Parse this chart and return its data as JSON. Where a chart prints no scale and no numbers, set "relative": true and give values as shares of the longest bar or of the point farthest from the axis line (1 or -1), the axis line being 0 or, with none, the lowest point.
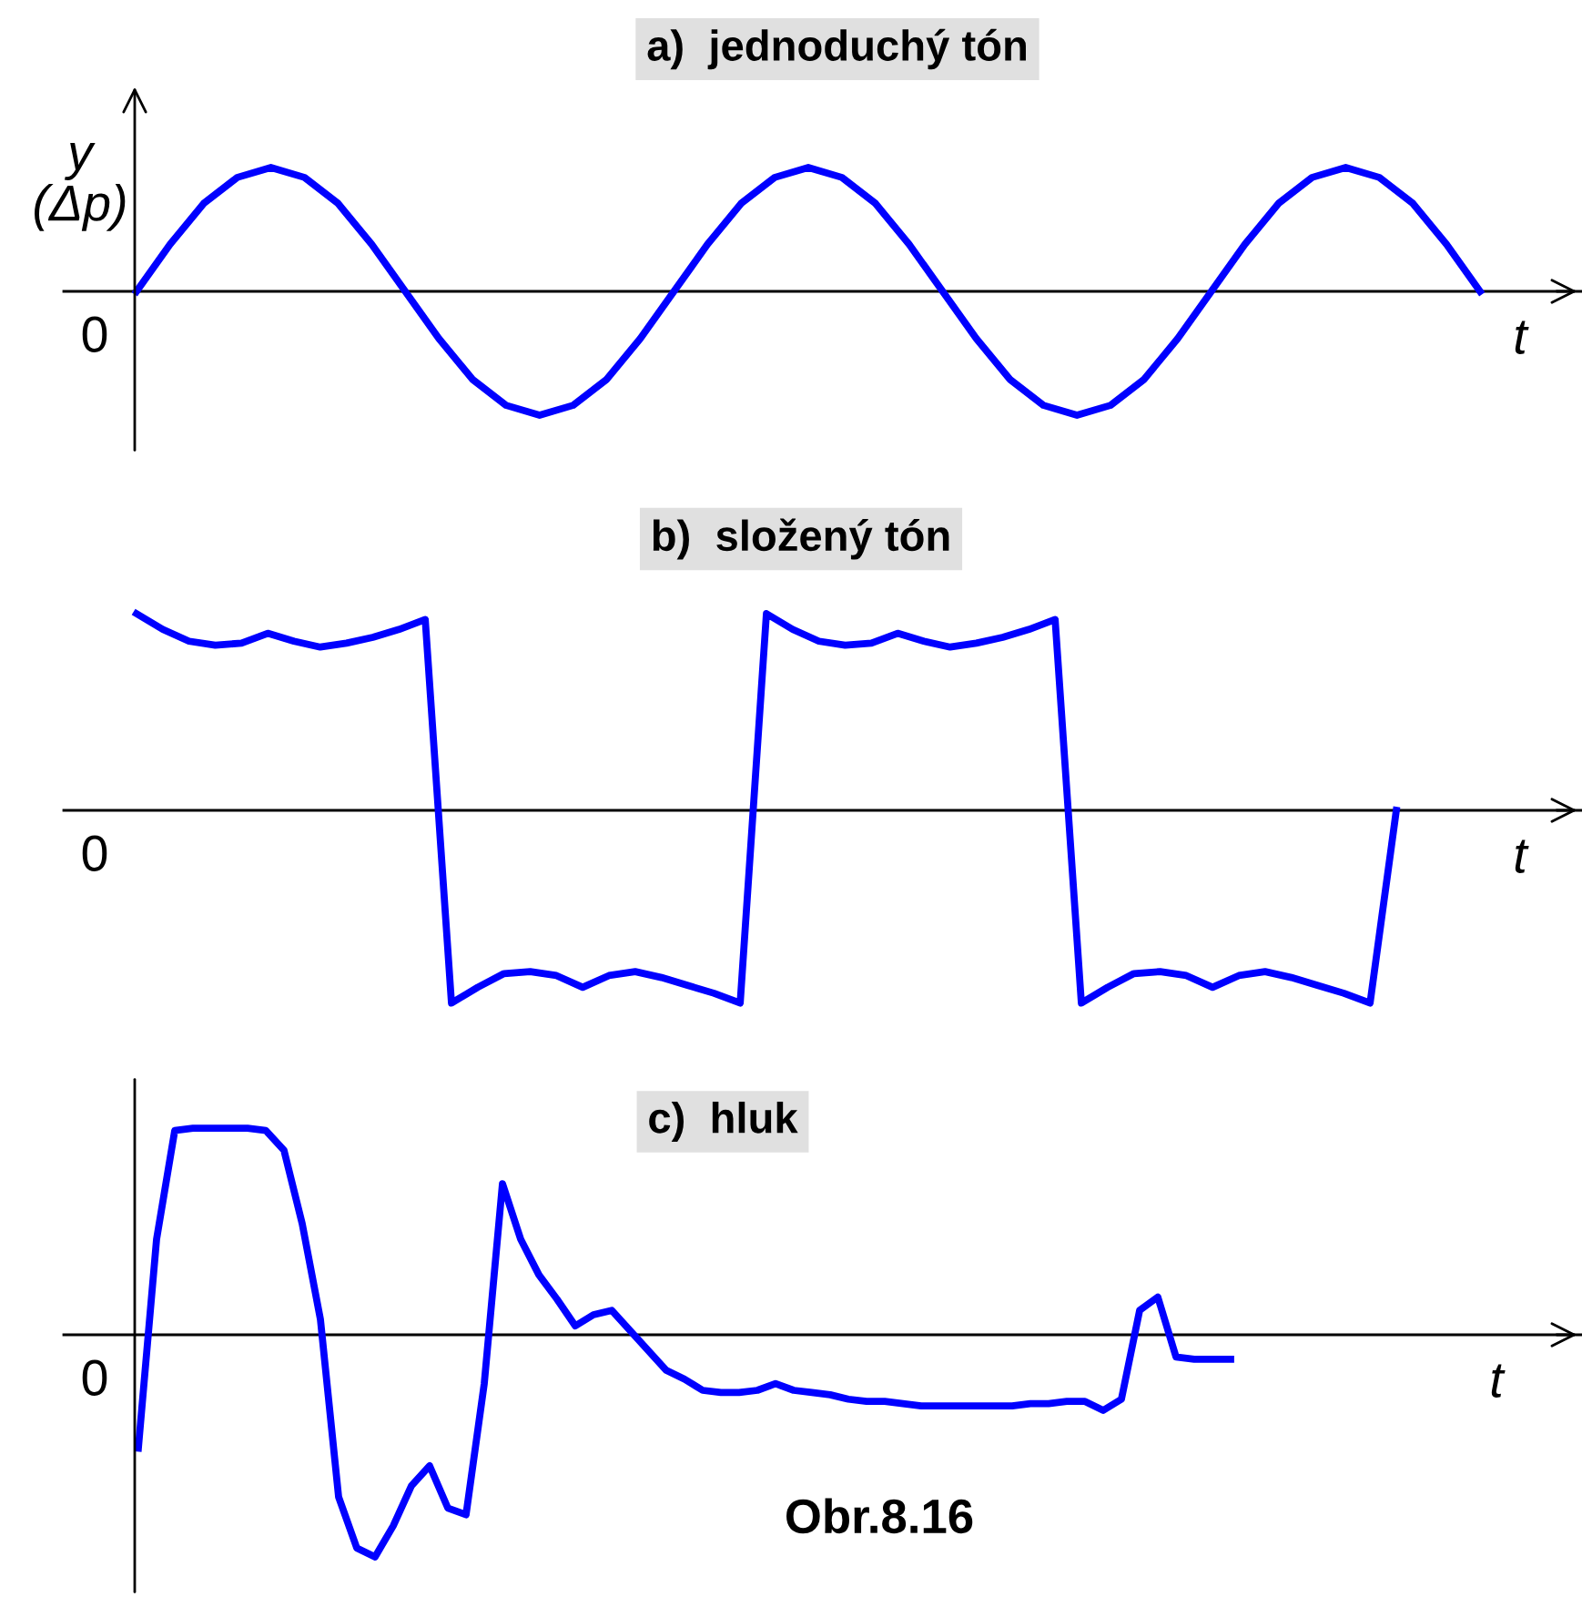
{
  "chart_data": [
    {
      "type": "line",
      "relative": true,
      "title": "a)  jednoduchý tón",
      "ylabel": "y (Δp)",
      "xlabel": "t",
      "annotations": [
        "0"
      ],
      "categories": [
        null,
        null,
        null,
        null,
        null,
        null,
        null,
        null,
        null,
        null,
        null,
        null,
        null,
        null,
        null,
        null,
        null,
        null,
        null,
        null,
        null,
        null,
        null,
        null,
        null,
        null,
        null,
        null,
        null,
        null,
        null,
        null,
        null,
        null,
        null,
        null,
        null,
        null,
        null,
        null,
        null
      ],
      "series": [
        {
          "color": "#0000ff",
          "values": [
            0,
            0.38,
            0.71,
            0.92,
            1,
            0.92,
            0.71,
            0.38,
            0,
            -0.38,
            -0.71,
            -0.92,
            -1,
            -0.92,
            -0.71,
            -0.38,
            0,
            0.38,
            0.71,
            0.92,
            1,
            0.92,
            0.71,
            0.38,
            0,
            -0.38,
            -0.71,
            -0.92,
            -1,
            -0.92,
            -0.71,
            -0.38,
            0,
            0.38,
            0.71,
            0.92,
            1,
            0.92,
            0.71,
            0.38,
            0
          ]
        }
      ]
    },
    {
      "type": "line",
      "relative": true,
      "title": "b)  složený tón",
      "xlabel": "t",
      "annotations": [
        "0"
      ],
      "categories": [
        null,
        null,
        null,
        null,
        null,
        null,
        null,
        null,
        null,
        null,
        null,
        null,
        null,
        null,
        null,
        null,
        null,
        null,
        null,
        null,
        null,
        null,
        null,
        null,
        null,
        null,
        null,
        null,
        null,
        null,
        null,
        null,
        null,
        null,
        null,
        null,
        null,
        null,
        null,
        null,
        null,
        null,
        null,
        null,
        null,
        null,
        null,
        null,
        null
      ],
      "series": [
        {
          "color": "#0000ff",
          "values": [
            1.0,
            0.92,
            0.86,
            0.84,
            0.85,
            0.9,
            0.86,
            0.83,
            0.85,
            0.88,
            0.92,
            0.97,
            -0.98,
            -0.9,
            -0.83,
            -0.82,
            -0.84,
            -0.9,
            -0.84,
            -0.82,
            -0.85,
            -0.89,
            -0.93,
            -0.98,
            1.0,
            0.92,
            0.86,
            0.84,
            0.85,
            0.9,
            0.86,
            0.83,
            0.85,
            0.88,
            0.92,
            0.97,
            -0.98,
            -0.9,
            -0.83,
            -0.82,
            -0.84,
            -0.9,
            -0.84,
            -0.82,
            -0.85,
            -0.89,
            -0.93,
            -0.98,
            0
          ]
        }
      ]
    },
    {
      "type": "line",
      "relative": true,
      "title": "c)  hluk",
      "xlabel": "t",
      "annotations": [
        "0",
        "Obr.8.16"
      ],
      "categories": [
        null,
        null,
        null,
        null,
        null,
        null,
        null,
        null,
        null,
        null,
        null,
        null,
        null,
        null,
        null,
        null,
        null,
        null,
        null,
        null,
        null,
        null,
        null,
        null,
        null,
        null,
        null,
        null,
        null,
        null,
        null,
        null,
        null,
        null,
        null,
        null,
        null,
        null,
        null,
        null,
        null,
        null,
        null,
        null,
        null,
        null,
        null,
        null,
        null,
        null,
        null,
        null,
        null,
        null,
        null,
        null,
        null,
        null,
        null,
        null,
        null
      ],
      "series": [
        {
          "color": "#0000ff",
          "values": [
            -0.51,
            0.43,
            0.92,
            0.93,
            0.93,
            0.93,
            0.93,
            0.92,
            0.83,
            0.5,
            0.07,
            -0.73,
            -0.96,
            -1.0,
            -0.86,
            -0.68,
            -0.59,
            -0.78,
            -0.81,
            -0.22,
            0.68,
            0.43,
            0.27,
            0.16,
            0.04,
            0.09,
            0.11,
            0.02,
            -0.07,
            -0.16,
            -0.2,
            -0.25,
            -0.26,
            -0.26,
            -0.25,
            -0.22,
            -0.25,
            -0.26,
            -0.27,
            -0.29,
            -0.3,
            -0.3,
            -0.31,
            -0.32,
            -0.32,
            -0.32,
            -0.32,
            -0.32,
            -0.32,
            -0.31,
            -0.31,
            -0.3,
            -0.3,
            -0.34,
            -0.29,
            0.11,
            0.17,
            -0.1,
            -0.11,
            -0.11,
            -0.11
          ]
        }
      ]
    }
  ]
}
